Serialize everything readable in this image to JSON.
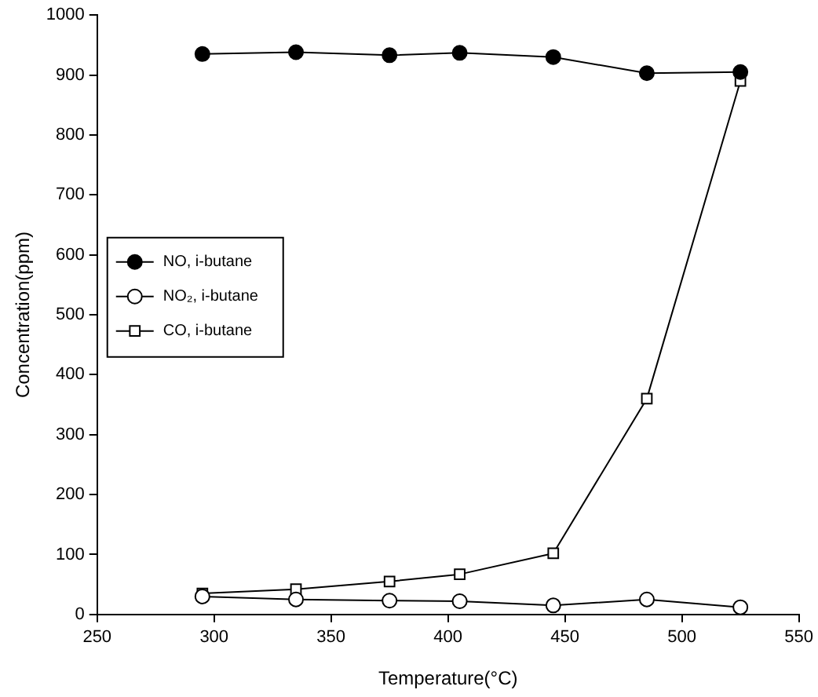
{
  "chart_data": {
    "type": "line",
    "xlabel": "Temperature(°C)",
    "ylabel": "Concentration(ppm)",
    "xlim": [
      250,
      550
    ],
    "xticks": [
      250,
      300,
      350,
      400,
      450,
      500,
      550
    ],
    "ylim": [
      0,
      1000
    ],
    "yticks": [
      0,
      100,
      200,
      300,
      400,
      500,
      600,
      700,
      800,
      900,
      1000
    ],
    "grid": false,
    "legend": "left",
    "series": [
      {
        "name": "NO, i-butane",
        "color": "#000000",
        "colors": [
          "#000000",
          "#000000",
          "#000000",
          "#000000",
          "#000000",
          "#000000",
          "#000000"
        ],
        "marker": "circle",
        "x": [
          295,
          335,
          375,
          405,
          445,
          485,
          525
        ],
        "values": [
          935,
          938,
          933,
          937,
          930,
          903,
          905
        ]
      },
      {
        "name": "NO₂, i-butane",
        "color": "#000000",
        "colors": [
          "#ffffff",
          "#ffffff",
          "#ffffff",
          "#ffffff",
          "#ffffff",
          "#ffffff",
          "#ffffff"
        ],
        "marker": "circle",
        "x": [
          295,
          335,
          375,
          405,
          445,
          485,
          525
        ],
        "values": [
          30,
          25,
          23,
          22,
          15,
          25,
          12
        ]
      },
      {
        "name": "CO, i-butane",
        "color": "#000000",
        "colors": [
          "#ffffff",
          "#ffffff",
          "#ffffff",
          "#ffffff",
          "#ffffff",
          "#ffffff",
          "#ffffff"
        ],
        "marker": "square",
        "x": [
          295,
          335,
          375,
          405,
          445,
          485,
          525
        ],
        "values": [
          35,
          42,
          55,
          67,
          102,
          360,
          890
        ]
      }
    ]
  }
}
